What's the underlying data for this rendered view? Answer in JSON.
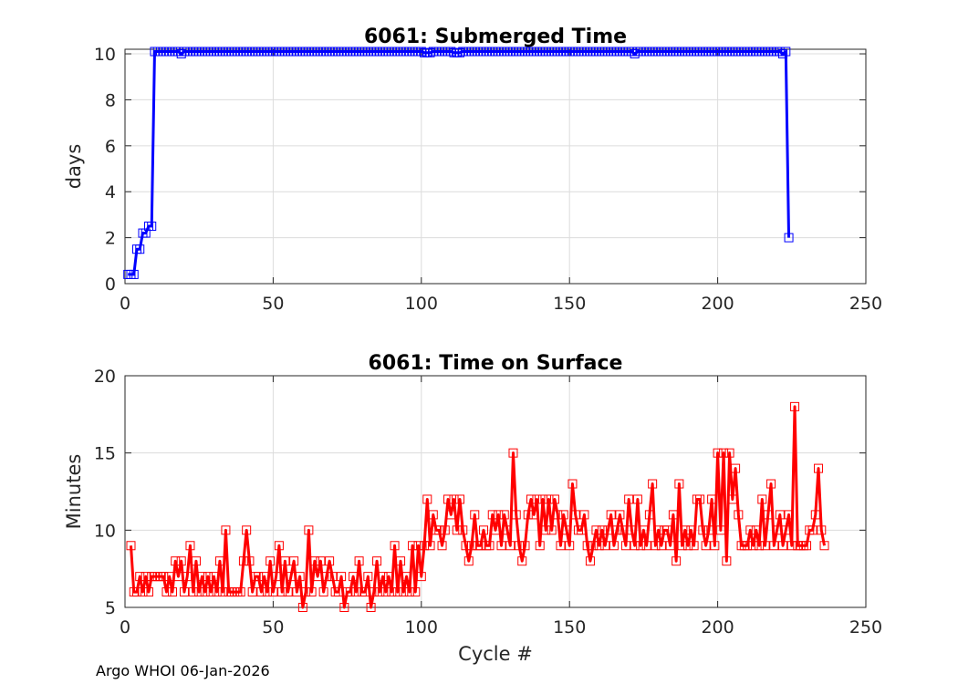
{
  "footer": "Argo WHOI 06-Jan-2026",
  "chart_data": [
    {
      "type": "line",
      "title": "6061: Submerged Time",
      "xlabel": "",
      "ylabel": "days",
      "xlim": [
        0,
        250
      ],
      "ylim": [
        0,
        10.2
      ],
      "xticks": [
        0,
        50,
        100,
        150,
        200,
        250
      ],
      "yticks": [
        0,
        2,
        4,
        6,
        8,
        10
      ],
      "grid": true,
      "color": "#0000ff",
      "marker": "square",
      "series": [
        {
          "x_start": 1,
          "values": [
            0.4,
            0.4,
            0.4,
            1.5,
            1.5,
            2.2,
            2.2,
            2.5,
            2.5,
            10.1,
            10.1,
            10.1,
            10.1,
            10.1,
            10.1,
            10.1,
            10.1,
            10.1,
            10.0,
            10.1,
            10.1,
            10.1,
            10.1,
            10.1,
            10.1,
            10.1,
            10.1,
            10.1,
            10.1,
            10.1,
            10.1,
            10.1,
            10.1,
            10.1,
            10.1,
            10.1,
            10.1,
            10.1,
            10.1,
            10.1,
            10.1,
            10.1,
            10.1,
            10.1,
            10.1,
            10.1,
            10.1,
            10.1,
            10.1,
            10.1,
            10.1,
            10.1,
            10.1,
            10.1,
            10.1,
            10.1,
            10.1,
            10.1,
            10.1,
            10.1,
            10.1,
            10.1,
            10.1,
            10.1,
            10.1,
            10.1,
            10.1,
            10.1,
            10.1,
            10.1,
            10.1,
            10.1,
            10.1,
            10.1,
            10.1,
            10.1,
            10.1,
            10.1,
            10.1,
            10.1,
            10.1,
            10.1,
            10.1,
            10.1,
            10.1,
            10.1,
            10.1,
            10.1,
            10.1,
            10.1,
            10.1,
            10.1,
            10.1,
            10.1,
            10.1,
            10.1,
            10.1,
            10.1,
            10.1,
            10.1,
            10.05,
            10.05,
            10.05,
            10.1,
            10.1,
            10.1,
            10.1,
            10.1,
            10.1,
            10.1,
            10.05,
            10.05,
            10.05,
            10.1,
            10.1,
            10.1,
            10.1,
            10.1,
            10.1,
            10.1,
            10.1,
            10.1,
            10.1,
            10.1,
            10.1,
            10.1,
            10.1,
            10.1,
            10.1,
            10.1,
            10.1,
            10.1,
            10.1,
            10.1,
            10.1,
            10.1,
            10.1,
            10.1,
            10.1,
            10.1,
            10.1,
            10.1,
            10.1,
            10.1,
            10.1,
            10.1,
            10.1,
            10.1,
            10.1,
            10.1,
            10.1,
            10.1,
            10.1,
            10.1,
            10.1,
            10.1,
            10.1,
            10.1,
            10.1,
            10.1,
            10.1,
            10.1,
            10.1,
            10.1,
            10.1,
            10.1,
            10.1,
            10.1,
            10.1,
            10.1,
            10.1,
            10.0,
            10.1,
            10.1,
            10.1,
            10.1,
            10.1,
            10.1,
            10.1,
            10.1,
            10.1,
            10.1,
            10.1,
            10.1,
            10.1,
            10.1,
            10.1,
            10.1,
            10.1,
            10.1,
            10.1,
            10.1,
            10.1,
            10.1,
            10.1,
            10.1,
            10.1,
            10.1,
            10.1,
            10.1,
            10.1,
            10.1,
            10.1,
            10.1,
            10.1,
            10.1,
            10.1,
            10.1,
            10.1,
            10.1,
            10.1,
            10.1,
            10.1,
            10.1,
            10.1,
            10.1,
            10.1,
            10.1,
            10.1,
            10.1,
            10.1,
            10.0,
            10.1,
            2.0
          ]
        }
      ]
    },
    {
      "type": "line",
      "title": "6061: Time on Surface",
      "xlabel": "Cycle #",
      "ylabel": "Minutes",
      "xlim": [
        0,
        250
      ],
      "ylim": [
        5,
        20
      ],
      "xticks": [
        0,
        50,
        100,
        150,
        200,
        250
      ],
      "yticks": [
        5,
        10,
        15,
        20
      ],
      "grid": true,
      "color": "#ff0000",
      "marker": "square",
      "series": [
        {
          "x_start": 2,
          "values": [
            9,
            6,
            6,
            7,
            6,
            7,
            6,
            7,
            7,
            7,
            7,
            7,
            6,
            7,
            6,
            8,
            7,
            8,
            6,
            7,
            9,
            6,
            8,
            6,
            7,
            6,
            7,
            6,
            7,
            6,
            8,
            6,
            10,
            6,
            6,
            6,
            6,
            6,
            8,
            10,
            8,
            6,
            7,
            7,
            6,
            7,
            6,
            8,
            6,
            7,
            9,
            6,
            8,
            6,
            7,
            8,
            6,
            7,
            5,
            6,
            10,
            6,
            8,
            7,
            8,
            6,
            7,
            8,
            7,
            6,
            6,
            7,
            5,
            6,
            6,
            7,
            6,
            8,
            6,
            6,
            7,
            5,
            6,
            8,
            6,
            7,
            6,
            7,
            6,
            9,
            6,
            8,
            6,
            7,
            6,
            9,
            6,
            9,
            7,
            9,
            12,
            9,
            11,
            10,
            10,
            9,
            10,
            12,
            11,
            12,
            10,
            12,
            10,
            9,
            8,
            9,
            11,
            9,
            9,
            10,
            9,
            9,
            11,
            10,
            11,
            9,
            11,
            10,
            9,
            15,
            11,
            9,
            8,
            9,
            11,
            12,
            11,
            12,
            9,
            12,
            10,
            12,
            10,
            12,
            11,
            9,
            11,
            10,
            9,
            13,
            11,
            10,
            10,
            11,
            9,
            8,
            9,
            10,
            9,
            10,
            9,
            10,
            11,
            9,
            10,
            11,
            10,
            9,
            12,
            10,
            9,
            12,
            9,
            10,
            9,
            11,
            13,
            9,
            10,
            9,
            10,
            10,
            9,
            11,
            8,
            13,
            9,
            10,
            9,
            10,
            9,
            12,
            12,
            10,
            9,
            10,
            12,
            9,
            15,
            10,
            15,
            8,
            15,
            12,
            14,
            11,
            9,
            9,
            9,
            10,
            9,
            10,
            9,
            12,
            9,
            11,
            13,
            9,
            10,
            11,
            9,
            10,
            11,
            9,
            18,
            9,
            9,
            9,
            9,
            10,
            10,
            11,
            14,
            10,
            9
          ]
        }
      ]
    }
  ]
}
